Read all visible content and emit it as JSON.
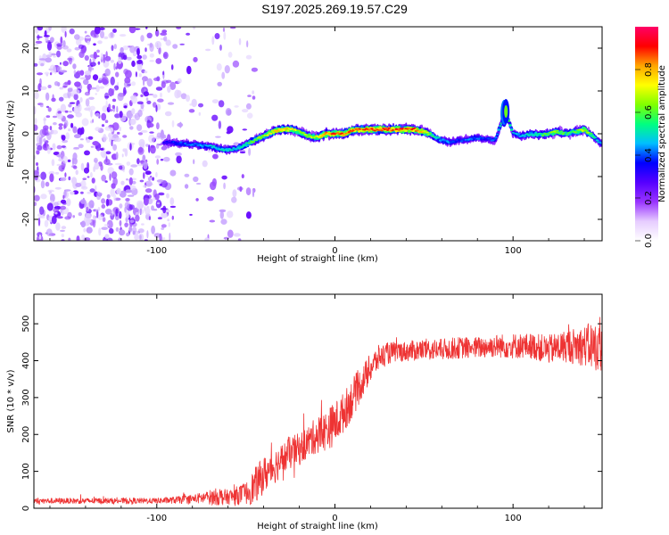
{
  "title": "S197.2025.269.19.57.C29",
  "chart_data": [
    {
      "type": "heatmap",
      "title": "S197.2025.269.19.57.C29",
      "xlabel": "Height of straight line (km)",
      "ylabel": "Frequency (Hz)",
      "xlim": [
        -169,
        150
      ],
      "ylim": [
        -25,
        25
      ],
      "xticks": [
        "-100",
        "0",
        "100"
      ],
      "xtick_values": [
        -100,
        0,
        100
      ],
      "yticks": [
        "20",
        "10",
        "0",
        "-10",
        "-20"
      ],
      "ytick_values": [
        20,
        10,
        0,
        -10,
        -20
      ],
      "colorbar": {
        "label": "Normalized spectral amplitude",
        "ticks": [
          "0.0",
          "0.2",
          "0.4",
          "0.6",
          "0.8"
        ],
        "tick_values": [
          0.0,
          0.2,
          0.4,
          0.6,
          0.8
        ],
        "range": [
          0,
          1
        ],
        "colors": [
          "#ffffff",
          "#e6ccff",
          "#9933ff",
          "#5500ff",
          "#0000ff",
          "#00bfff",
          "#00ff80",
          "#80ff00",
          "#ffff00",
          "#ffa500",
          "#ff0000",
          "#ff0066"
        ]
      },
      "ridge": {
        "x": [
          -96,
          -90,
          -80,
          -70,
          -60,
          -55,
          -50,
          -45,
          -40,
          -35,
          -30,
          -25,
          -20,
          -15,
          -10,
          -5,
          0,
          5,
          10,
          15,
          20,
          25,
          30,
          35,
          40,
          45,
          50,
          55,
          60,
          65,
          70,
          75,
          80,
          85,
          90,
          93,
          96,
          100,
          105,
          110,
          115,
          120,
          125,
          130,
          135,
          140,
          145,
          150
        ],
        "y": [
          -2,
          -2.2,
          -2.5,
          -3,
          -3.8,
          -3.5,
          -2.5,
          -1.5,
          -0.5,
          0.5,
          1,
          1,
          0.5,
          -0.5,
          -0.8,
          0,
          0,
          0,
          0.8,
          1,
          1,
          1,
          1,
          1,
          1,
          1,
          0.5,
          -0.5,
          -1.5,
          -2,
          -1.5,
          -1.3,
          -1,
          -1.2,
          -1.5,
          2,
          5,
          0,
          -0.5,
          0,
          -0.2,
          0,
          0.5,
          0,
          0.5,
          1,
          -0.5,
          -2.5
        ],
        "amplitude": [
          0.35,
          0.4,
          0.45,
          0.5,
          0.55,
          0.5,
          0.6,
          0.65,
          0.7,
          0.8,
          0.85,
          0.8,
          0.7,
          0.7,
          0.75,
          0.9,
          0.95,
          0.95,
          0.9,
          0.95,
          0.95,
          0.95,
          0.95,
          0.95,
          0.95,
          0.95,
          0.8,
          0.6,
          0.5,
          0.45,
          0.4,
          0.45,
          0.45,
          0.4,
          0.45,
          0.55,
          0.7,
          0.5,
          0.5,
          0.55,
          0.6,
          0.65,
          0.7,
          0.6,
          0.65,
          0.75,
          0.6,
          0.45
        ]
      },
      "noise_region_km": [
        -169,
        -50
      ]
    },
    {
      "type": "line",
      "xlabel": "Height of straight line (km)",
      "ylabel": "SNR (10 * v/v)",
      "xlim": [
        -169,
        150
      ],
      "ylim": [
        0,
        580
      ],
      "xticks": [
        "-100",
        "0",
        "100"
      ],
      "xtick_values": [
        -100,
        0,
        100
      ],
      "yticks": [
        "0",
        "100",
        "200",
        "300",
        "400",
        "500"
      ],
      "ytick_values": [
        0,
        100,
        200,
        300,
        400,
        500
      ],
      "series": [
        {
          "name": "SNR",
          "color": "#ee3333",
          "x": [
            -169,
            -160,
            -150,
            -140,
            -130,
            -120,
            -110,
            -100,
            -90,
            -80,
            -70,
            -65,
            -60,
            -55,
            -50,
            -45,
            -40,
            -35,
            -30,
            -25,
            -20,
            -15,
            -10,
            -5,
            0,
            5,
            10,
            15,
            20,
            25,
            30,
            35,
            40,
            50,
            60,
            70,
            80,
            90,
            100,
            110,
            120,
            130,
            140,
            145,
            150
          ],
          "y": [
            20,
            20,
            20,
            20,
            20,
            20,
            20,
            20,
            22,
            25,
            30,
            32,
            30,
            35,
            40,
            60,
            90,
            110,
            130,
            150,
            160,
            180,
            200,
            210,
            230,
            260,
            300,
            340,
            380,
            410,
            420,
            425,
            425,
            430,
            430,
            435,
            435,
            440,
            440,
            440,
            430,
            440,
            440,
            440,
            430
          ],
          "noise_amplitude": [
            8,
            8,
            8,
            8,
            8,
            8,
            8,
            8,
            10,
            12,
            20,
            25,
            20,
            25,
            30,
            50,
            50,
            50,
            45,
            45,
            45,
            45,
            50,
            55,
            60,
            55,
            55,
            45,
            40,
            35,
            30,
            28,
            28,
            30,
            30,
            30,
            30,
            32,
            35,
            35,
            40,
            45,
            55,
            70,
            60
          ]
        }
      ]
    }
  ]
}
